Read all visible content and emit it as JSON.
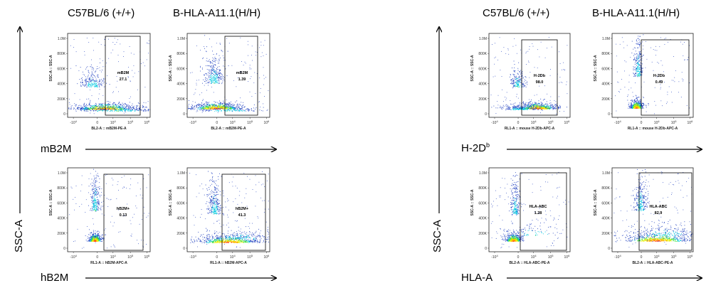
{
  "column_titles": {
    "left_1": "C57BL/6 (+/+)",
    "left_2": "B-HLA-A11.1(H/H)",
    "right_1": "C57BL/6 (+/+)",
    "right_2": "B-HLA-A11.1(H/H)"
  },
  "axis_labels": {
    "ssc_left": "SSC-A",
    "ssc_right": "SSC-A",
    "mB2M": "mB2M",
    "hB2M": "hB2M",
    "h2db_base": "H-2D",
    "h2db_sup": "b",
    "hlaa": "HLA-A"
  },
  "chart_data": [
    {
      "type": "scatter",
      "panel": "mB2M WT",
      "ylabel": "SSC-A :: SSC-A",
      "xlabel": "BL2-A :: mB2M-PE-A",
      "yticks": [
        "0",
        "200K",
        "400K",
        "600K",
        "800K",
        "1.0M"
      ],
      "xticks": [
        "-10^4",
        "0",
        "10^4",
        "10^5",
        "10^6"
      ],
      "gate_label": "mB2M",
      "gate_value": "27.1",
      "color": "#1f3fbf"
    },
    {
      "type": "scatter",
      "panel": "mB2M Hum",
      "ylabel": "SSC-A :: SSC-A",
      "xlabel": "BL2-A :: mB2M-PE-A",
      "yticks": [
        "0",
        "200K",
        "400K",
        "600K",
        "800K",
        "1.0M"
      ],
      "xticks": [
        "-10^4",
        "0",
        "10^4",
        "10^5",
        "10^6"
      ],
      "gate_label": "mB2M",
      "gate_value": "1.39",
      "color": "#1f3fbf"
    },
    {
      "type": "scatter",
      "panel": "hB2M WT",
      "ylabel": "SSC-A :: SSC-A",
      "xlabel": "RL1-A :: hB2M-APC-A",
      "yticks": [
        "0",
        "200K",
        "400K",
        "600K",
        "800K",
        "1.0M"
      ],
      "xticks": [
        "-10^4",
        "0",
        "10^4",
        "10^5",
        "10^6"
      ],
      "gate_label": "hB2M+",
      "gate_value": "0.13",
      "color": "#1f3fbf"
    },
    {
      "type": "scatter",
      "panel": "hB2M Hum",
      "ylabel": "SSC-A :: SSC-A",
      "xlabel": "RL1-A :: hB2M-APC-A",
      "yticks": [
        "0",
        "200K",
        "400K",
        "600K",
        "800K",
        "1.0M"
      ],
      "xticks": [
        "-10^4",
        "0",
        "10^4",
        "10^5",
        "10^6"
      ],
      "gate_label": "hB2M+",
      "gate_value": "41.3",
      "color": "#1f3fbf"
    },
    {
      "type": "scatter",
      "panel": "H-2Db WT",
      "ylabel": "SSC-A :: SSC-A",
      "xlabel": "RL1-A :: mouse H-2Db-APC-A",
      "yticks": [
        "0",
        "200K",
        "400K",
        "600K",
        "800K",
        "1.0M"
      ],
      "xticks": [
        "-10^4",
        "0",
        "10^4",
        "10^5",
        "10^6"
      ],
      "gate_label": "H-2Db",
      "gate_value": "98.0",
      "color": "#1f3fbf"
    },
    {
      "type": "scatter",
      "panel": "H-2Db Hum",
      "ylabel": "SSC-A :: SSC-A",
      "xlabel": "RL1-A :: mouse H-2Db-APC-A",
      "yticks": [
        "0",
        "200K",
        "400K",
        "600K",
        "800K",
        "1.0M"
      ],
      "xticks": [
        "-10^4",
        "0",
        "10^4",
        "10^5",
        "10^6"
      ],
      "gate_label": "H-2Db",
      "gate_value": "0.49",
      "color": "#1f3fbf"
    },
    {
      "type": "scatter",
      "panel": "HLA-A WT",
      "ylabel": "SSC-A :: SSC-A",
      "xlabel": "BL2-A :: HLA-ABC-PE-A",
      "yticks": [
        "0",
        "200K",
        "400K",
        "600K",
        "800K",
        "1.0M"
      ],
      "xticks": [
        "-10^4",
        "0",
        "10^4",
        "10^5",
        "10^6"
      ],
      "gate_label": "HLA-ABC",
      "gate_value": "1.28",
      "color": "#1f3fbf"
    },
    {
      "type": "scatter",
      "panel": "HLA-A Hum",
      "ylabel": "SSC-A :: SSC-A",
      "xlabel": "BL2-A :: HLA-ABC-PE-A",
      "yticks": [
        "0",
        "200K",
        "400K",
        "600K",
        "800K",
        "1.0M"
      ],
      "xticks": [
        "-10^4",
        "0",
        "10^4",
        "10^5",
        "10^6"
      ],
      "gate_label": "HLA-ABC",
      "gate_value": "82.9",
      "color": "#1f3fbf"
    }
  ]
}
